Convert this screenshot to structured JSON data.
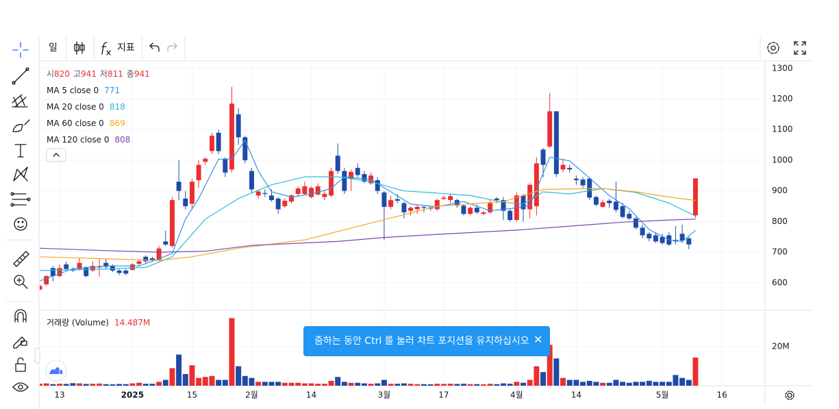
{
  "toolbar": {
    "interval": "일",
    "indicators": "지표"
  },
  "toast": "줌하는 동안 Ctrl 를 눌러 차트 포지션을 유지하십시오",
  "chart_data": {
    "type": "candlestick",
    "ohlc_labels": [
      "시",
      "고",
      "저",
      "종"
    ],
    "colors": {
      "up": "#eb2f2f",
      "down": "#1e4ba6"
    },
    "open": [
      578,
      595,
      648,
      622,
      660,
      645,
      645,
      650,
      640,
      650,
      665,
      655,
      640,
      640,
      642,
      662,
      685,
      680,
      675,
      735,
      720,
      930,
      875,
      858,
      935,
      995,
      1030,
      1090,
      1005,
      970,
      1150,
      1075,
      965,
      885,
      893,
      885,
      875,
      850,
      865,
      890,
      890,
      880,
      888,
      880,
      885,
      1015,
      965,
      940,
      975,
      955,
      925,
      935,
      895,
      848,
      873,
      860,
      835,
      840,
      848,
      846,
      840,
      874,
      870,
      870,
      852,
      825,
      845,
      825,
      830,
      875,
      870,
      835,
      805,
      885,
      840,
      850,
      1035,
      1045,
      1160,
      970,
      975,
      940,
      937,
      940,
      880,
      848,
      868,
      865,
      850,
      825,
      810,
      780,
      760,
      755,
      750,
      755,
      740,
      760,
      745,
      820
    ],
    "high": [
      595,
      625,
      655,
      660,
      670,
      650,
      680,
      655,
      670,
      680,
      680,
      660,
      645,
      645,
      665,
      675,
      690,
      685,
      720,
      770,
      880,
      1000,
      900,
      940,
      1000,
      1010,
      1090,
      1100,
      1010,
      1240,
      1170,
      1080,
      975,
      905,
      905,
      905,
      880,
      875,
      890,
      915,
      930,
      915,
      925,
      900,
      975,
      1055,
      975,
      970,
      990,
      965,
      960,
      945,
      900,
      885,
      890,
      865,
      850,
      855,
      850,
      850,
      875,
      885,
      890,
      875,
      855,
      850,
      855,
      835,
      870,
      880,
      880,
      840,
      895,
      890,
      925,
      1010,
      1040,
      1220,
      1160,
      1005,
      985,
      950,
      945,
      945,
      885,
      870,
      875,
      930,
      860,
      835,
      815,
      790,
      765,
      765,
      760,
      765,
      785,
      790,
      750,
      941
    ],
    "low": [
      575,
      590,
      605,
      618,
      640,
      635,
      640,
      618,
      635,
      620,
      645,
      635,
      625,
      625,
      640,
      655,
      665,
      670,
      670,
      720,
      715,
      870,
      840,
      840,
      910,
      985,
      1020,
      1020,
      945,
      960,
      1050,
      990,
      895,
      875,
      880,
      865,
      825,
      845,
      860,
      880,
      885,
      875,
      885,
      870,
      880,
      955,
      890,
      900,
      945,
      925,
      920,
      890,
      740,
      840,
      860,
      810,
      820,
      825,
      830,
      835,
      835,
      870,
      860,
      845,
      820,
      820,
      825,
      820,
      825,
      860,
      805,
      800,
      800,
      800,
      810,
      820,
      945,
      1040,
      945,
      960,
      960,
      920,
      910,
      870,
      850,
      845,
      845,
      830,
      810,
      805,
      775,
      745,
      735,
      730,
      725,
      720,
      725,
      730,
      710,
      811
    ],
    "close": [
      590,
      622,
      622,
      648,
      645,
      640,
      665,
      622,
      655,
      653,
      652,
      640,
      632,
      630,
      660,
      670,
      670,
      675,
      712,
      725,
      870,
      900,
      850,
      930,
      985,
      1005,
      1080,
      1030,
      960,
      1185,
      1075,
      1000,
      905,
      898,
      890,
      870,
      840,
      868,
      885,
      908,
      915,
      910,
      915,
      890,
      965,
      965,
      900,
      962,
      952,
      930,
      950,
      900,
      848,
      870,
      868,
      830,
      845,
      848,
      845,
      842,
      870,
      878,
      883,
      852,
      825,
      845,
      830,
      830,
      860,
      870,
      835,
      805,
      885,
      840,
      920,
      990,
      985,
      1160,
      955,
      985,
      970,
      935,
      918,
      878,
      855,
      863,
      860,
      838,
      815,
      810,
      780,
      755,
      745,
      735,
      730,
      725,
      735,
      738,
      725,
      941
    ],
    "xlim": [
      0,
      109.5
    ],
    "xticks": [
      {
        "value": 3,
        "label": "13"
      },
      {
        "value": 14,
        "label": "2025"
      },
      {
        "value": 23,
        "label": "15"
      },
      {
        "value": 32,
        "label": "2월"
      },
      {
        "value": 41,
        "label": "14"
      },
      {
        "value": 52,
        "label": "3월"
      },
      {
        "value": 61,
        "label": "17"
      },
      {
        "value": 72,
        "label": "4월"
      },
      {
        "value": 81,
        "label": "14"
      },
      {
        "value": 94,
        "label": "5월"
      },
      {
        "value": 103,
        "label": "16"
      }
    ],
    "ylim": [
      510,
      1322
    ],
    "yticks": [
      600,
      700,
      800,
      900,
      1000,
      1100,
      1200,
      1300
    ],
    "grid": true,
    "moving_averages": [
      {
        "name": "MA 5 close 0",
        "color": "#2f93e8",
        "x": [
          0,
          5,
          10,
          15,
          18,
          20,
          22,
          24,
          27,
          29,
          31,
          33,
          35,
          38,
          41,
          44,
          46,
          50,
          53,
          56,
          60,
          64,
          68,
          71,
          74,
          77,
          80,
          83,
          86,
          89,
          92,
          95,
          97,
          99
        ],
        "values": [
          606,
          646,
          655,
          655,
          678,
          696,
          808,
          875,
          1004,
          1004,
          1065,
          965,
          897,
          880,
          890,
          908,
          946,
          937,
          897,
          857,
          848,
          865,
          835,
          842,
          852,
          1010,
          998,
          942,
          885,
          842,
          774,
          740,
          735,
          771
        ]
      },
      {
        "name": "MA 20 close 0",
        "color": "#26bcd7",
        "x": [
          0,
          10,
          16,
          20,
          25,
          30,
          35,
          40,
          45,
          50,
          55,
          60,
          65,
          70,
          73,
          76,
          80,
          85,
          90,
          95,
          99
        ],
        "values": [
          640,
          645,
          650,
          685,
          808,
          875,
          920,
          946,
          946,
          930,
          900,
          893,
          885,
          863,
          857,
          897,
          890,
          908,
          895,
          860,
          818
        ]
      },
      {
        "name": "MA 60 close 0",
        "color": "#f5a623",
        "x": [
          0,
          18,
          23,
          30,
          40,
          50,
          60,
          70,
          76,
          85,
          90,
          95,
          99
        ],
        "values": [
          685,
          673,
          685,
          713,
          740,
          795,
          850,
          865,
          905,
          908,
          897,
          880,
          869
        ]
      },
      {
        "name": "MA 120 close 0",
        "color": "#7e3fb8",
        "x": [
          0,
          10,
          18,
          25,
          32,
          45,
          52,
          60,
          72,
          80,
          88,
          95,
          99
        ],
        "values": [
          713,
          705,
          700,
          703,
          722,
          735,
          748,
          758,
          772,
          785,
          798,
          805,
          808
        ]
      }
    ],
    "volume": {
      "name": "거래량 (Volume)",
      "value_label": "14.487M",
      "values": [
        1,
        1.2,
        0.8,
        1,
        0.9,
        1.3,
        1.2,
        0.9,
        1,
        1.1,
        0.8,
        0.7,
        0.9,
        0.8,
        1.2,
        1.5,
        1,
        1,
        2,
        3,
        9,
        16,
        6,
        10.5,
        4,
        4.5,
        5,
        3,
        3,
        34.7,
        10,
        5,
        4,
        2,
        2,
        2,
        2,
        1.5,
        1.5,
        1.5,
        1.2,
        1.2,
        1,
        1,
        2.5,
        4.5,
        2,
        1.5,
        1.5,
        1.2,
        1,
        1.2,
        3,
        1,
        1,
        1.2,
        1,
        0.8,
        0.8,
        0.7,
        1,
        0.9,
        1,
        0.9,
        1,
        0.8,
        0.8,
        0.7,
        1,
        0.8,
        1.2,
        1,
        2,
        1.5,
        3,
        10,
        7,
        21,
        14,
        4,
        3,
        3,
        2,
        2.5,
        2,
        1.5,
        1.5,
        3,
        2,
        1.5,
        2,
        2,
        2.5,
        2,
        2,
        2,
        5.5,
        4,
        3,
        14.487
      ],
      "ylim": [
        0,
        38
      ],
      "yticks": [
        {
          "value": 20,
          "label": "20M"
        }
      ]
    }
  }
}
